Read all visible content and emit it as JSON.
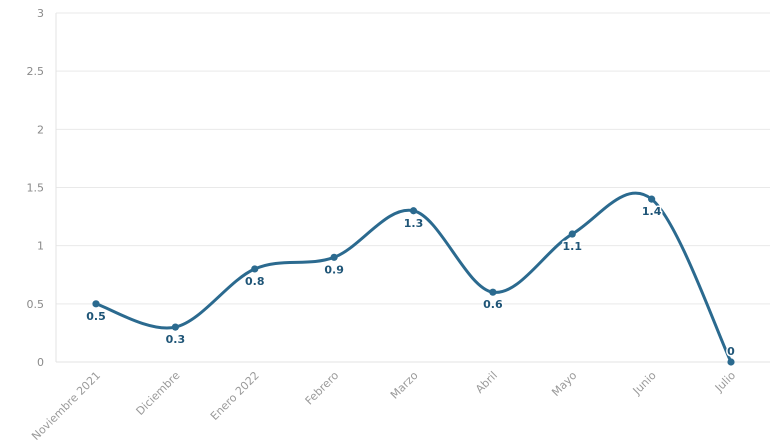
{
  "chart_data": {
    "type": "line",
    "title": "",
    "xlabel": "",
    "ylabel": "",
    "categories": [
      "Noviembre 2021",
      "Diciembre",
      "Enero 2022",
      "Febrero",
      "Marzo",
      "Abril",
      "Mayo",
      "Junio",
      "Julio"
    ],
    "series": [
      {
        "name": "Serie",
        "values": [
          0.5,
          0.3,
          0.8,
          0.9,
          1.3,
          0.6,
          1.1,
          1.4,
          0
        ],
        "labels": [
          "0.5",
          "0.3",
          "0.8",
          "0.9",
          "1.3",
          "0.6",
          "1.1",
          "1.4",
          "0"
        ]
      }
    ],
    "ylim": [
      0,
      3
    ],
    "yticks": [
      0,
      0.5,
      1,
      1.5,
      2,
      2.5,
      3
    ],
    "ytick_labels": [
      "0",
      "0.5",
      "1",
      "1.5",
      "2",
      "2.5",
      "3"
    ],
    "grid": true,
    "legend": "none"
  },
  "colors": {
    "line": "#2b6a8f",
    "label": "#1f5577",
    "grid": "#e9e9e9"
  }
}
